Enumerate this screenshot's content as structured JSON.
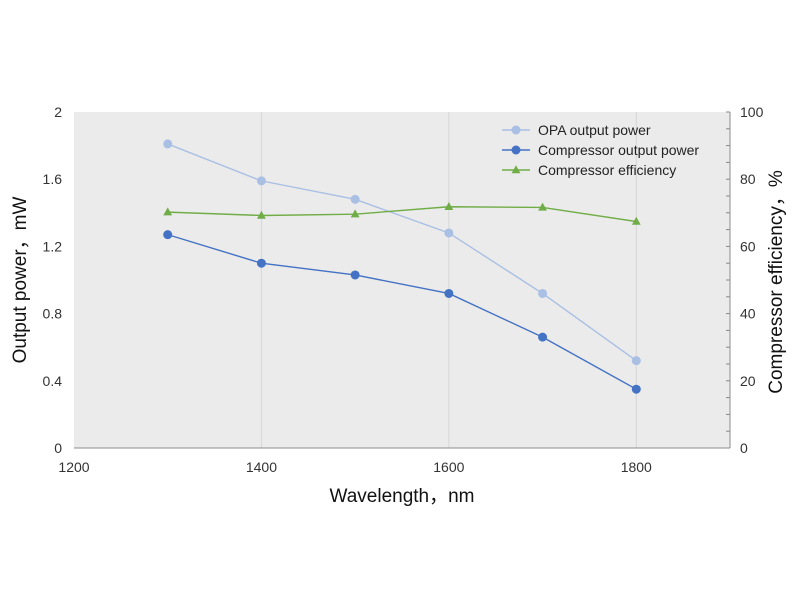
{
  "chart_data": {
    "type": "line",
    "xlabel": "Wavelength，nm",
    "ylabel_left": "Output power，mW",
    "ylabel_right": "Compressor efficiency，%",
    "xlim": [
      1200,
      1900
    ],
    "ylim_left": [
      0,
      2
    ],
    "ylim_right": [
      0,
      100
    ],
    "x_ticks": [
      1200,
      1400,
      1600,
      1800
    ],
    "y_left_ticks": [
      "0",
      "0.4",
      "0.8",
      "1.2",
      "1.6",
      "2"
    ],
    "y_right_ticks": [
      "0",
      "20",
      "40",
      "60",
      "80",
      "100"
    ],
    "grid": true,
    "legend_position": "top-right",
    "series": [
      {
        "name": "OPA output power",
        "axis": "left",
        "marker": "circle",
        "color": "#a9bfe4",
        "x": [
          1300,
          1400,
          1500,
          1600,
          1700,
          1800
        ],
        "y": [
          1.81,
          1.59,
          1.48,
          1.28,
          0.92,
          0.52
        ]
      },
      {
        "name": "Compressor output power",
        "axis": "left",
        "marker": "circle",
        "color": "#4472c4",
        "x": [
          1300,
          1400,
          1500,
          1600,
          1700,
          1800
        ],
        "y": [
          1.27,
          1.1,
          1.03,
          0.92,
          0.66,
          0.35
        ]
      },
      {
        "name": "Compressor efficiency",
        "axis": "right",
        "marker": "triangle",
        "color": "#70ad47",
        "x": [
          1300,
          1400,
          1500,
          1600,
          1700,
          1800
        ],
        "y": [
          70.2,
          69.2,
          69.6,
          71.8,
          71.6,
          67.4
        ]
      }
    ]
  }
}
